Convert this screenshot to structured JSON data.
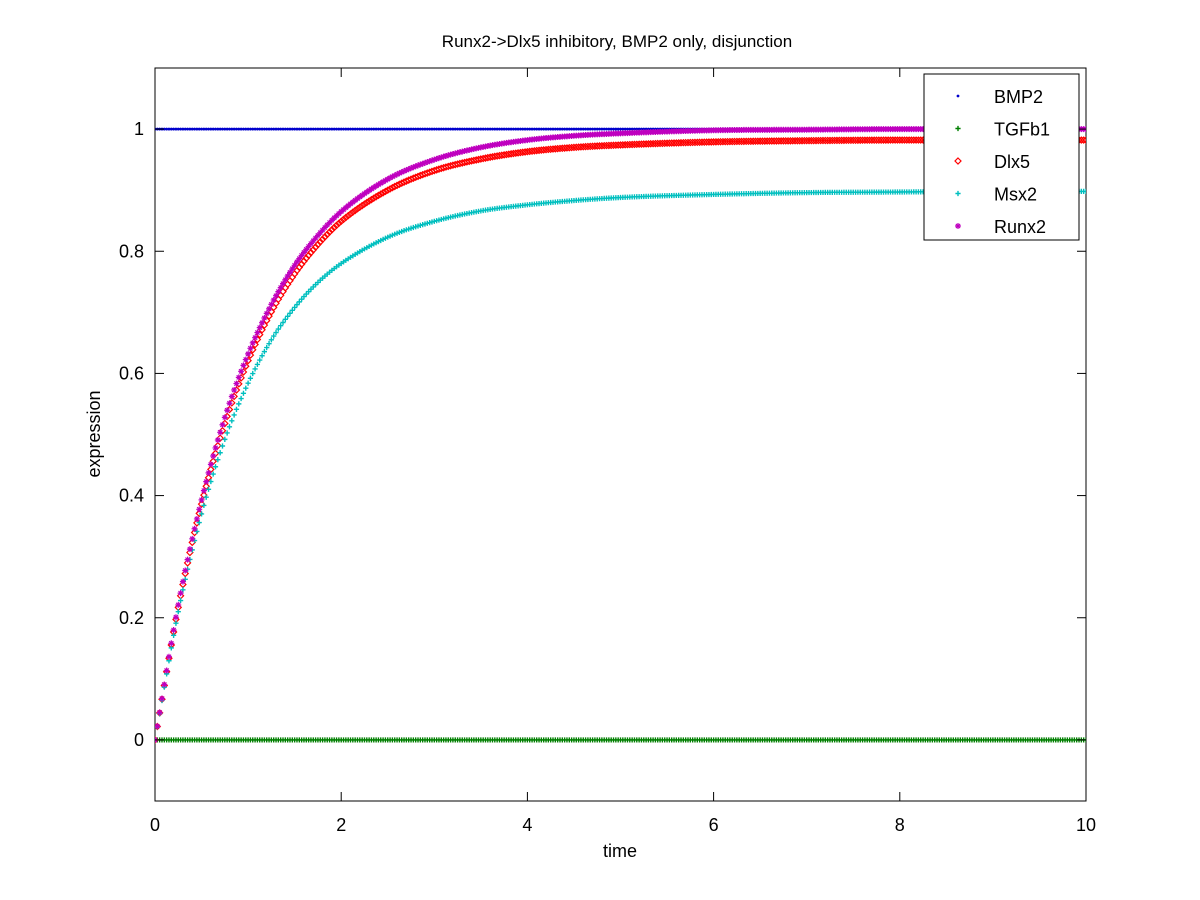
{
  "chart_data": {
    "type": "scatter",
    "title": "Runx2->Dlx5 inhibitory, BMP2 only, disjunction",
    "xlabel": "time",
    "ylabel": "expression",
    "xlim": [
      0,
      10
    ],
    "ylim": [
      -0.1,
      1.1
    ],
    "xticks": [
      0,
      2,
      4,
      6,
      8,
      10
    ],
    "yticks": [
      0,
      0.2,
      0.4,
      0.6,
      0.8,
      1
    ],
    "grid": false,
    "legend_position": "top-right",
    "series": [
      {
        "name": "BMP2",
        "color": "#0000cc",
        "marker": "point",
        "x": [
          0,
          1,
          2,
          3,
          4,
          5,
          6,
          7,
          8,
          9,
          10
        ],
        "y": [
          1,
          1,
          1,
          1,
          1,
          1,
          1,
          1,
          1,
          1,
          1
        ]
      },
      {
        "name": "TGFb1",
        "color": "#007f00",
        "marker": "plus",
        "x": [
          0,
          1,
          2,
          3,
          4,
          5,
          6,
          7,
          8,
          9,
          10
        ],
        "y": [
          0,
          0,
          0,
          0,
          0,
          0,
          0,
          0,
          0,
          0,
          0
        ]
      },
      {
        "name": "Dlx5",
        "color": "#ff0000",
        "marker": "diamond",
        "x": [
          0,
          0.25,
          0.5,
          0.75,
          1,
          1.25,
          1.5,
          1.75,
          2,
          2.5,
          3,
          3.5,
          4,
          4.5,
          5,
          6,
          7,
          8,
          9,
          10
        ],
        "y": [
          0,
          0.217,
          0.386,
          0.518,
          0.621,
          0.701,
          0.763,
          0.811,
          0.849,
          0.9,
          0.932,
          0.951,
          0.963,
          0.97,
          0.974,
          0.979,
          0.981,
          0.982,
          0.982,
          0.982
        ]
      },
      {
        "name": "Msx2",
        "color": "#00bfbf",
        "marker": "plus",
        "x": [
          0,
          0.25,
          0.5,
          0.75,
          1,
          1.25,
          1.5,
          1.75,
          2,
          2.5,
          3,
          3.5,
          4,
          4.5,
          5,
          6,
          7,
          8,
          9,
          10
        ],
        "y": [
          0,
          0.21,
          0.37,
          0.492,
          0.584,
          0.655,
          0.708,
          0.749,
          0.78,
          0.823,
          0.849,
          0.866,
          0.876,
          0.883,
          0.888,
          0.893,
          0.896,
          0.897,
          0.898,
          0.898
        ]
      },
      {
        "name": "Runx2",
        "color": "#bf00bf",
        "marker": "star",
        "x": [
          0,
          0.25,
          0.5,
          0.75,
          1,
          1.25,
          1.5,
          1.75,
          2,
          2.5,
          3,
          3.5,
          4,
          4.5,
          5,
          6,
          7,
          8,
          9,
          10
        ],
        "y": [
          0,
          0.221,
          0.393,
          0.528,
          0.632,
          0.713,
          0.777,
          0.826,
          0.865,
          0.918,
          0.95,
          0.97,
          0.982,
          0.989,
          0.993,
          0.998,
          0.999,
          1.0,
          1.0,
          1.0
        ]
      }
    ]
  }
}
